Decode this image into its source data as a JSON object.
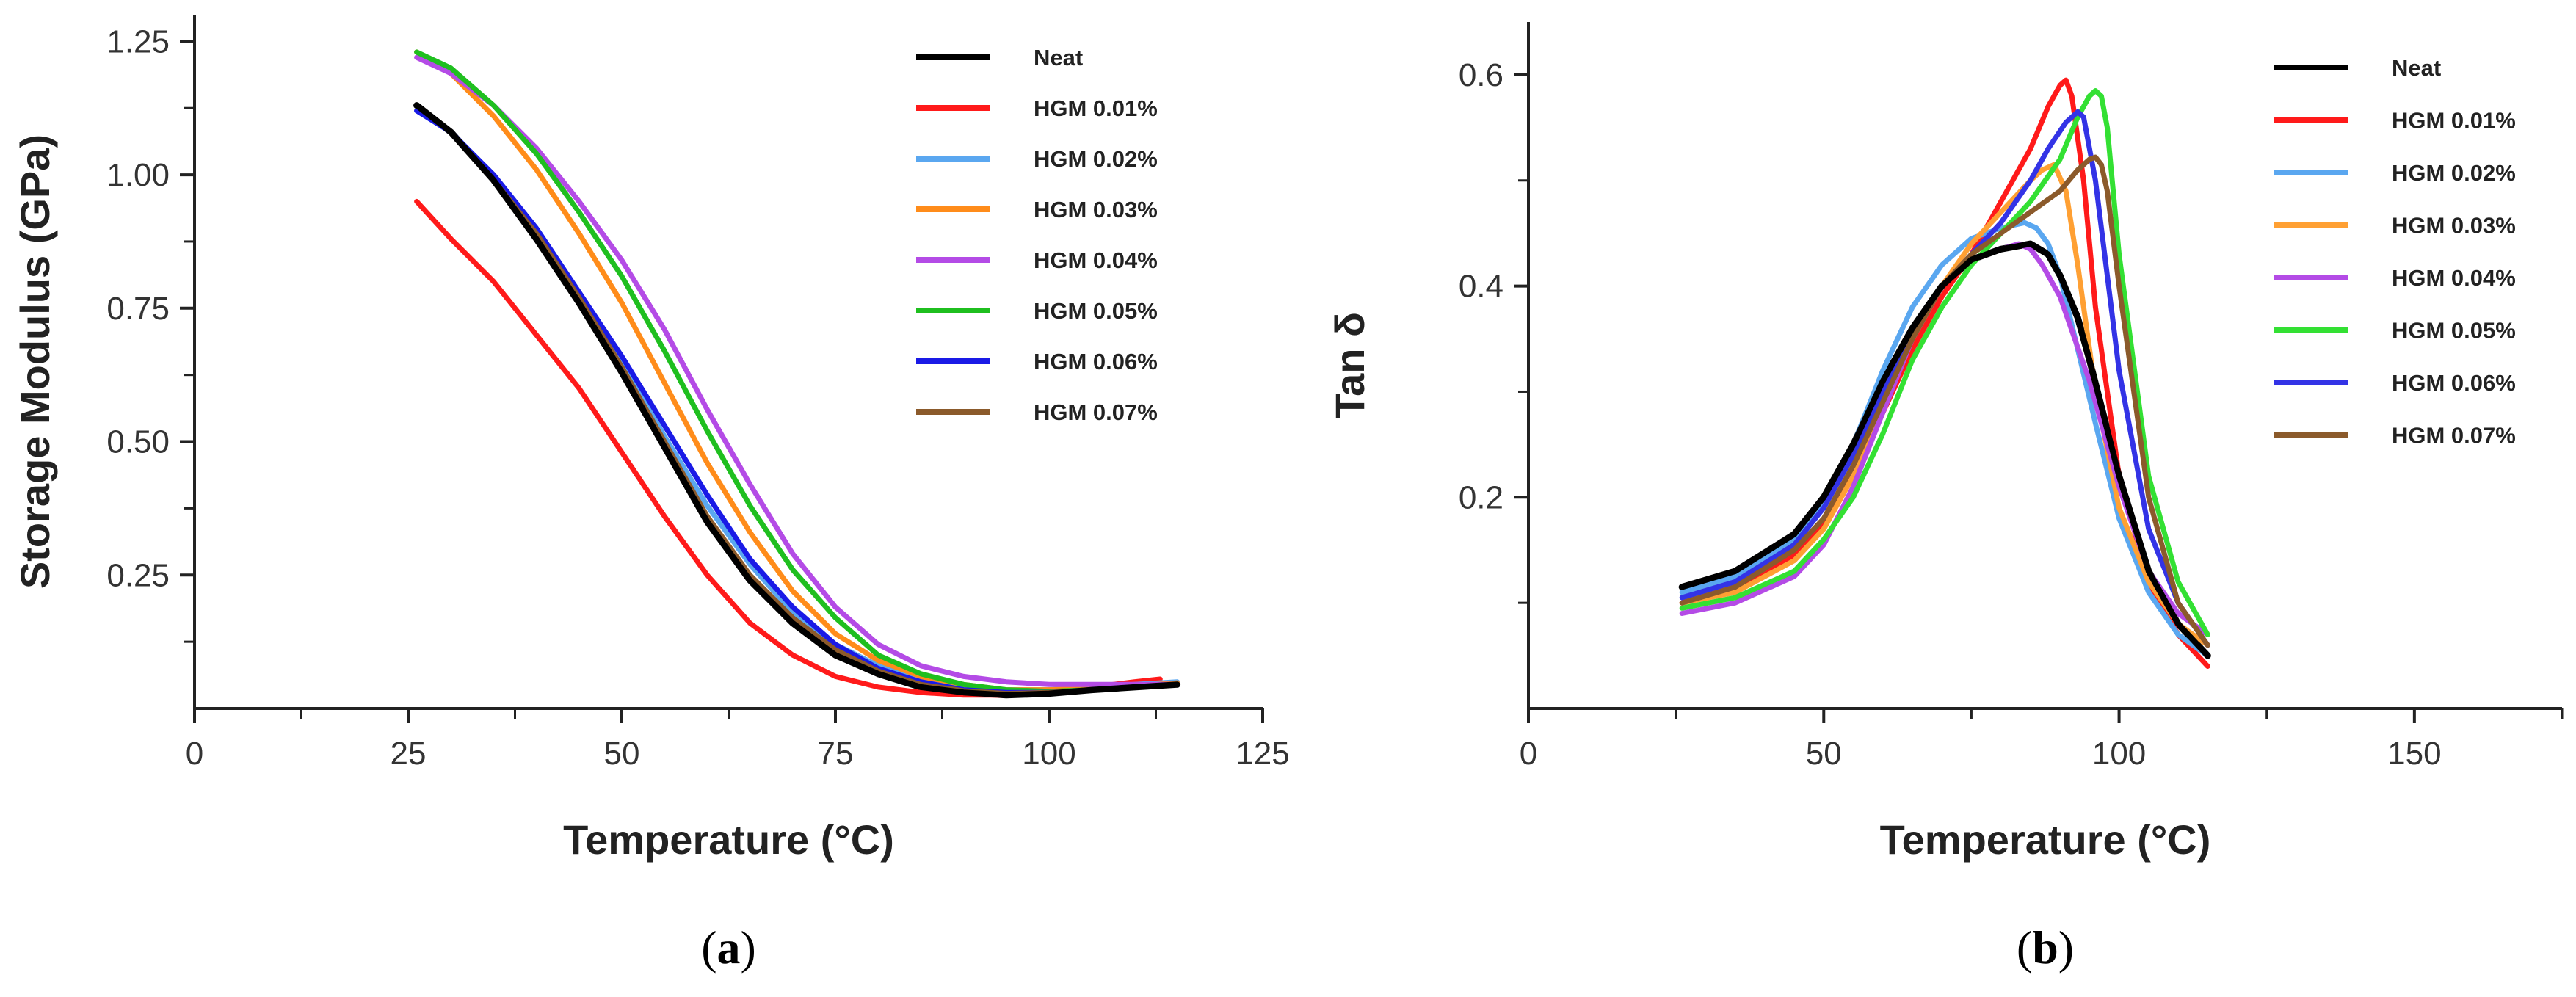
{
  "chart_data": [
    {
      "type": "line",
      "panel_label": "(a)",
      "panel_letter": "a",
      "title": "",
      "xlabel": "Temperature (°C)",
      "ylabel": "Storage Modulus (GPa)",
      "xlim": [
        0,
        125
      ],
      "ylim": [
        0,
        1.3
      ],
      "xticks": [
        0,
        25,
        50,
        75,
        100,
        125
      ],
      "xtick_labels": [
        "0",
        "25",
        "50",
        "75",
        "100",
        "125"
      ],
      "xminor": [
        12.5,
        37.5,
        62.5,
        87.5,
        112.5
      ],
      "yticks": [
        0.25,
        0.5,
        0.75,
        1.0,
        1.25
      ],
      "ytick_labels": [
        "0.25",
        "0.50",
        "0.75",
        "1.00",
        "1.25"
      ],
      "yminor": [
        0.125,
        0.375,
        0.625,
        0.875,
        1.125
      ],
      "legend_position": "top-right",
      "grid": false,
      "series": [
        {
          "name": "Neat",
          "color": "#000000",
          "x": [
            26,
            30,
            35,
            40,
            45,
            50,
            55,
            60,
            65,
            70,
            75,
            80,
            85,
            90,
            95,
            100,
            105,
            110,
            115
          ],
          "y": [
            1.13,
            1.08,
            0.99,
            0.88,
            0.76,
            0.63,
            0.49,
            0.35,
            0.24,
            0.16,
            0.1,
            0.065,
            0.04,
            0.03,
            0.025,
            0.028,
            0.035,
            0.04,
            0.045
          ]
        },
        {
          "name": "HGM 0.01%",
          "color": "#ff1a1a",
          "x": [
            26,
            30,
            35,
            40,
            45,
            50,
            55,
            60,
            65,
            70,
            75,
            80,
            85,
            90,
            95,
            100,
            105,
            110,
            113
          ],
          "y": [
            0.95,
            0.88,
            0.8,
            0.7,
            0.6,
            0.48,
            0.36,
            0.25,
            0.16,
            0.1,
            0.06,
            0.04,
            0.03,
            0.025,
            0.025,
            0.03,
            0.04,
            0.05,
            0.055
          ]
        },
        {
          "name": "HGM 0.02%",
          "color": "#5aa7f0",
          "x": [
            26,
            30,
            35,
            40,
            45,
            50,
            55,
            60,
            65,
            70,
            75,
            80,
            85,
            90,
            95,
            100,
            105,
            110,
            115
          ],
          "y": [
            1.12,
            1.08,
            1.0,
            0.9,
            0.78,
            0.65,
            0.51,
            0.38,
            0.27,
            0.18,
            0.12,
            0.08,
            0.055,
            0.04,
            0.035,
            0.035,
            0.04,
            0.045,
            0.05
          ]
        },
        {
          "name": "HGM 0.03%",
          "color": "#ff8c1a",
          "x": [
            26,
            30,
            35,
            40,
            45,
            50,
            55,
            60,
            65,
            70,
            75,
            80,
            85,
            90,
            95,
            100,
            105,
            110,
            115
          ],
          "y": [
            1.23,
            1.19,
            1.11,
            1.01,
            0.89,
            0.76,
            0.61,
            0.46,
            0.33,
            0.22,
            0.14,
            0.09,
            0.06,
            0.045,
            0.035,
            0.035,
            0.038,
            0.042,
            0.048
          ]
        },
        {
          "name": "HGM 0.04%",
          "color": "#b44be6",
          "x": [
            26,
            30,
            35,
            40,
            45,
            50,
            55,
            60,
            65,
            70,
            75,
            80,
            85,
            90,
            95,
            100,
            105,
            110,
            115
          ],
          "y": [
            1.22,
            1.19,
            1.13,
            1.05,
            0.95,
            0.84,
            0.71,
            0.56,
            0.42,
            0.29,
            0.19,
            0.12,
            0.08,
            0.06,
            0.05,
            0.045,
            0.045,
            0.045,
            0.045
          ]
        },
        {
          "name": "HGM 0.05%",
          "color": "#1fbf1f",
          "x": [
            26,
            30,
            35,
            40,
            45,
            50,
            55,
            60,
            65,
            70,
            75,
            80,
            85,
            90,
            95,
            100,
            105,
            110,
            115
          ],
          "y": [
            1.23,
            1.2,
            1.13,
            1.04,
            0.93,
            0.81,
            0.67,
            0.52,
            0.38,
            0.26,
            0.17,
            0.1,
            0.065,
            0.045,
            0.035,
            0.032,
            0.035,
            0.04,
            0.045
          ]
        },
        {
          "name": "HGM 0.06%",
          "color": "#1a1ae6",
          "x": [
            26,
            30,
            35,
            40,
            45,
            50,
            55,
            60,
            65,
            70,
            75,
            80,
            85,
            90,
            95,
            100,
            105,
            110,
            115
          ],
          "y": [
            1.12,
            1.08,
            1.0,
            0.9,
            0.78,
            0.66,
            0.53,
            0.4,
            0.28,
            0.19,
            0.12,
            0.075,
            0.05,
            0.035,
            0.03,
            0.03,
            0.035,
            0.04,
            0.045
          ]
        },
        {
          "name": "HGM 0.07%",
          "color": "#8b5a2b",
          "x": [
            26,
            30,
            35,
            40,
            45,
            50,
            55,
            60,
            65,
            70,
            75,
            80,
            85,
            90,
            95,
            100,
            105,
            110,
            115
          ],
          "y": [
            1.13,
            1.08,
            0.99,
            0.89,
            0.77,
            0.64,
            0.5,
            0.36,
            0.25,
            0.17,
            0.11,
            0.07,
            0.045,
            0.033,
            0.028,
            0.03,
            0.035,
            0.04,
            0.045
          ]
        }
      ]
    },
    {
      "type": "line",
      "panel_label": "(b)",
      "panel_letter": "b",
      "title": "",
      "xlabel": "Temperature (°C)",
      "ylabel": "Tan δ",
      "xlim": [
        0,
        175
      ],
      "ylim": [
        0,
        0.65
      ],
      "xticks": [
        0,
        50,
        100,
        150
      ],
      "xtick_labels": [
        "0",
        "50",
        "100",
        "150"
      ],
      "xminor": [
        25,
        75,
        125,
        175
      ],
      "yticks": [
        0.2,
        0.4,
        0.6
      ],
      "ytick_labels": [
        "0.2",
        "0.4",
        "0.6"
      ],
      "yminor": [
        0.1,
        0.3,
        0.5
      ],
      "legend_position": "top-right",
      "grid": false,
      "series": [
        {
          "name": "Neat",
          "color": "#000000",
          "x": [
            26,
            35,
            45,
            50,
            55,
            60,
            65,
            70,
            75,
            80,
            85,
            88,
            90,
            93,
            95,
            100,
            105,
            110,
            115
          ],
          "y": [
            0.115,
            0.13,
            0.165,
            0.2,
            0.25,
            0.31,
            0.36,
            0.4,
            0.425,
            0.435,
            0.44,
            0.43,
            0.41,
            0.37,
            0.33,
            0.22,
            0.13,
            0.08,
            0.05
          ]
        },
        {
          "name": "HGM 0.01%",
          "color": "#ff1a1a",
          "x": [
            26,
            35,
            45,
            50,
            55,
            60,
            65,
            70,
            75,
            80,
            85,
            88,
            90,
            91,
            92,
            94,
            96,
            100,
            105,
            110,
            115
          ],
          "y": [
            0.1,
            0.115,
            0.145,
            0.175,
            0.22,
            0.28,
            0.34,
            0.39,
            0.43,
            0.48,
            0.53,
            0.57,
            0.59,
            0.595,
            0.58,
            0.5,
            0.38,
            0.22,
            0.12,
            0.07,
            0.04
          ]
        },
        {
          "name": "HGM 0.02%",
          "color": "#5aa7f0",
          "x": [
            26,
            35,
            45,
            50,
            55,
            60,
            65,
            70,
            75,
            80,
            84,
            86,
            88,
            90,
            93,
            96,
            100,
            105,
            110,
            115
          ],
          "y": [
            0.11,
            0.125,
            0.16,
            0.195,
            0.25,
            0.32,
            0.38,
            0.42,
            0.445,
            0.455,
            0.46,
            0.455,
            0.44,
            0.41,
            0.34,
            0.27,
            0.18,
            0.11,
            0.07,
            0.05
          ]
        },
        {
          "name": "HGM 0.03%",
          "color": "#ffa033",
          "x": [
            26,
            35,
            45,
            50,
            55,
            60,
            65,
            70,
            75,
            80,
            85,
            87,
            89,
            91,
            93,
            96,
            100,
            105,
            110,
            115
          ],
          "y": [
            0.1,
            0.11,
            0.14,
            0.17,
            0.22,
            0.29,
            0.35,
            0.4,
            0.44,
            0.47,
            0.5,
            0.51,
            0.515,
            0.49,
            0.42,
            0.3,
            0.19,
            0.12,
            0.08,
            0.06
          ]
        },
        {
          "name": "HGM 0.04%",
          "color": "#b44be6",
          "x": [
            26,
            35,
            45,
            50,
            55,
            60,
            65,
            70,
            75,
            80,
            83,
            85,
            87,
            90,
            95,
            100,
            105,
            110,
            115
          ],
          "y": [
            0.09,
            0.1,
            0.125,
            0.155,
            0.21,
            0.28,
            0.35,
            0.4,
            0.425,
            0.435,
            0.44,
            0.435,
            0.42,
            0.39,
            0.31,
            0.21,
            0.13,
            0.09,
            0.07
          ]
        },
        {
          "name": "HGM 0.05%",
          "color": "#33e033",
          "x": [
            26,
            35,
            45,
            50,
            55,
            60,
            65,
            70,
            75,
            80,
            85,
            90,
            93,
            95,
            96,
            97,
            98,
            100,
            105,
            110,
            115
          ],
          "y": [
            0.095,
            0.105,
            0.13,
            0.16,
            0.2,
            0.26,
            0.33,
            0.38,
            0.42,
            0.45,
            0.48,
            0.52,
            0.56,
            0.58,
            0.585,
            0.58,
            0.55,
            0.43,
            0.22,
            0.12,
            0.07
          ]
        },
        {
          "name": "HGM 0.06%",
          "color": "#3333e6",
          "x": [
            26,
            35,
            45,
            50,
            55,
            60,
            65,
            70,
            75,
            80,
            85,
            88,
            91,
            93,
            94,
            96,
            100,
            105,
            110,
            115
          ],
          "y": [
            0.105,
            0.12,
            0.155,
            0.19,
            0.24,
            0.3,
            0.36,
            0.4,
            0.43,
            0.46,
            0.5,
            0.53,
            0.555,
            0.565,
            0.56,
            0.5,
            0.32,
            0.17,
            0.1,
            0.06
          ]
        },
        {
          "name": "HGM 0.07%",
          "color": "#8b5a2b",
          "x": [
            26,
            35,
            45,
            50,
            55,
            60,
            65,
            70,
            75,
            80,
            85,
            90,
            93,
            95,
            96,
            97,
            98,
            100,
            105,
            110,
            115
          ],
          "y": [
            0.1,
            0.115,
            0.15,
            0.18,
            0.23,
            0.29,
            0.35,
            0.4,
            0.43,
            0.45,
            0.47,
            0.49,
            0.51,
            0.52,
            0.522,
            0.515,
            0.49,
            0.4,
            0.2,
            0.1,
            0.06
          ]
        }
      ]
    }
  ]
}
